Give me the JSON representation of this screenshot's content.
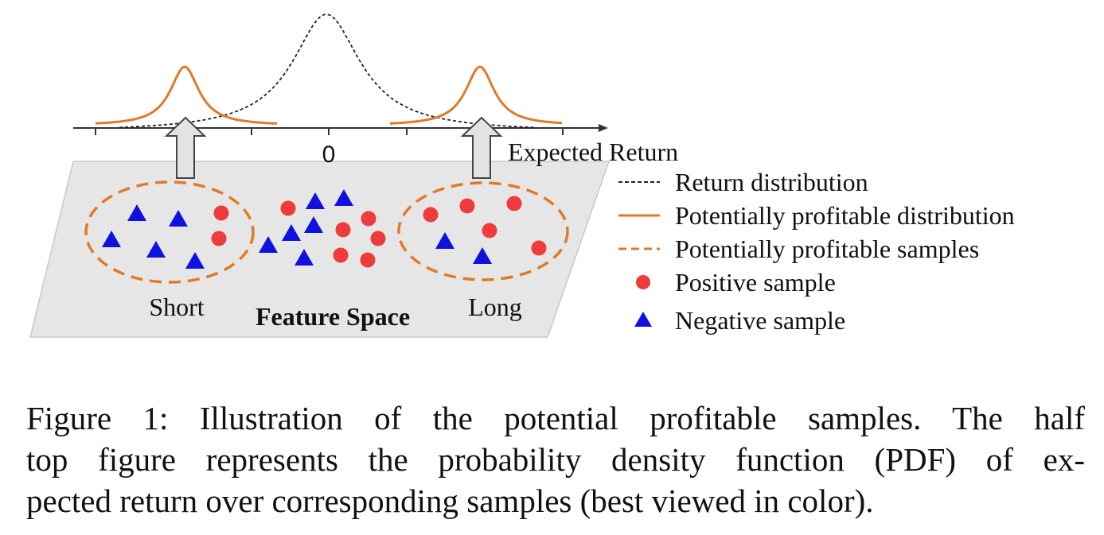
{
  "axis": {
    "zero_label": "0",
    "label": "Expected Return"
  },
  "feature_space": {
    "label": "Feature Space",
    "left_cluster_label": "Short",
    "right_cluster_label": "Long"
  },
  "legend": {
    "items": [
      {
        "style": "dotted-black-line",
        "label": "Return distribution"
      },
      {
        "style": "solid-orange-line",
        "label": "Potentially profitable distribution"
      },
      {
        "style": "dashed-orange-line",
        "label": "Potentially profitable samples"
      },
      {
        "style": "red-circle",
        "label": "Positive sample"
      },
      {
        "style": "blue-triangle",
        "label": "Negative sample"
      }
    ]
  },
  "colors": {
    "orange": "#e07a26",
    "positive": "#ee3b3b",
    "negative": "#1111dd",
    "plane": "#e6e6e6",
    "dist": "#222222"
  },
  "caption": {
    "lines": [
      "Figure 1: Illustration of the potential profitable samples. The half",
      "top figure represents the probability density function (PDF) of ex-",
      "pected return over corresponding samples (best viewed in color)."
    ]
  }
}
